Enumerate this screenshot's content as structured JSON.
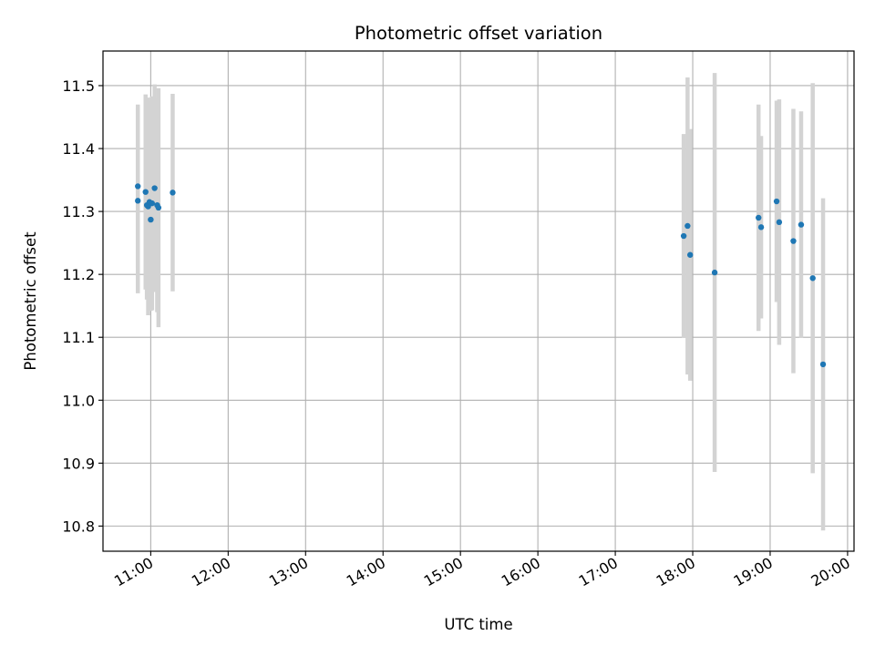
{
  "chart_data": {
    "type": "scatter",
    "title": "Photometric offset variation",
    "xlabel": "UTC time",
    "ylabel": "Photometric offset",
    "xlim": [
      "10:23",
      "20:05"
    ],
    "ylim": [
      10.76,
      11.555
    ],
    "grid": true,
    "legend": "none",
    "x_ticks": [
      "11:00",
      "12:00",
      "13:00",
      "14:00",
      "15:00",
      "16:00",
      "17:00",
      "18:00",
      "19:00",
      "20:00"
    ],
    "y_ticks": [
      "10.8",
      "10.9",
      "11.0",
      "11.1",
      "11.2",
      "11.3",
      "11.4",
      "11.5"
    ],
    "series": [
      {
        "type": "errorbar",
        "points": [
          {
            "x": "10:50",
            "y": 11.317,
            "err": 0.147
          },
          {
            "x": "10:50",
            "y": 11.34,
            "err": 0.13
          },
          {
            "x": "10:56",
            "y": 11.331,
            "err": 0.155
          },
          {
            "x": "10:57",
            "y": 11.31,
            "err": 0.15
          },
          {
            "x": "10:58",
            "y": 11.308,
            "err": 0.173
          },
          {
            "x": "10:59",
            "y": 11.315,
            "err": 0.16
          },
          {
            "x": "11:00",
            "y": 11.287,
            "err": 0.145
          },
          {
            "x": "11:01",
            "y": 11.313,
            "err": 0.17
          },
          {
            "x": "11:03",
            "y": 11.337,
            "err": 0.165
          },
          {
            "x": "11:05",
            "y": 11.31,
            "err": 0.17
          },
          {
            "x": "11:06",
            "y": 11.306,
            "err": 0.19
          },
          {
            "x": "11:17",
            "y": 11.33,
            "err": 0.157
          },
          {
            "x": "17:53",
            "y": 11.261,
            "err": 0.162
          },
          {
            "x": "17:56",
            "y": 11.277,
            "err": 0.236
          },
          {
            "x": "17:58",
            "y": 11.231,
            "err": 0.2
          },
          {
            "x": "18:17",
            "y": 11.203,
            "err": 0.317
          },
          {
            "x": "18:51",
            "y": 11.29,
            "err": 0.18
          },
          {
            "x": "18:53",
            "y": 11.275,
            "err": 0.145
          },
          {
            "x": "19:05",
            "y": 11.316,
            "err": 0.16
          },
          {
            "x": "19:07",
            "y": 11.283,
            "err": 0.195
          },
          {
            "x": "19:18",
            "y": 11.253,
            "err": 0.21
          },
          {
            "x": "19:24",
            "y": 11.279,
            "err": 0.18
          },
          {
            "x": "19:33",
            "y": 11.194,
            "err": 0.31
          },
          {
            "x": "19:41",
            "y": 11.057,
            "err": 0.264
          }
        ]
      }
    ],
    "colors": {
      "marker": "#1f77b4",
      "errorbar": "#d3d3d3",
      "grid": "#b0b0b0",
      "axes": "#000000"
    }
  }
}
